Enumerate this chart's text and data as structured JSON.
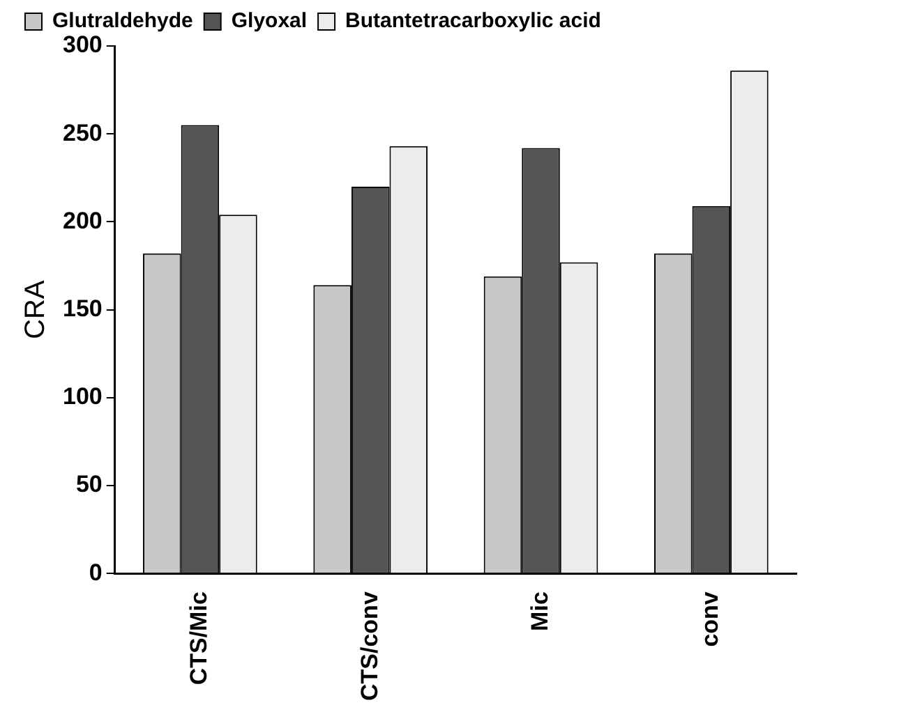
{
  "chart_data": {
    "type": "bar",
    "ylabel": "CRA",
    "categories": [
      "CTS/Mic",
      "CTS/conv",
      "Mic",
      "conv"
    ],
    "series": [
      {
        "name": "Glutraldehyde",
        "color": "#c8c8c8",
        "values": [
          182,
          164,
          169,
          182
        ]
      },
      {
        "name": "Glyoxal",
        "color": "#555555",
        "values": [
          255,
          220,
          242,
          209
        ]
      },
      {
        "name": "Butantetracarboxylic acid",
        "color": "#ececec",
        "values": [
          204,
          243,
          177,
          286
        ]
      }
    ],
    "ylim": [
      0,
      300
    ],
    "yticks": [
      0,
      50,
      100,
      150,
      200,
      250,
      300
    ],
    "grid": false,
    "legend": "top"
  }
}
